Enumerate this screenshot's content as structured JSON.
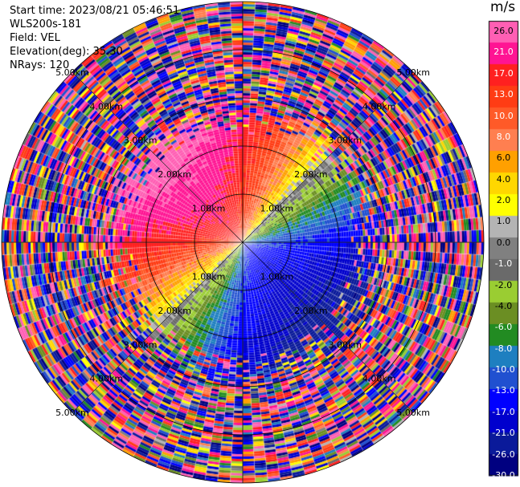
{
  "header": {
    "start_time": "Start time: 2023/08/21 05:46:51",
    "instrument": "WLS200s-181",
    "field": "Field: VEL",
    "elevation": "Elevation(deg): 35.30",
    "nrays": "NRays: 120"
  },
  "colorbar": {
    "unit": "m/s",
    "ticks": [
      "26.0",
      "21.0",
      "17.0",
      "13.0",
      "10.0",
      "8.0",
      "6.0",
      "4.0",
      "2.0",
      "1.0",
      "0.0",
      "-1.0",
      "-2.0",
      "-4.0",
      "-6.0",
      "-8.0",
      "-10.0",
      "-13.0",
      "-17.0",
      "-21.0",
      "-26.0",
      "-30.0"
    ],
    "bins": [
      {
        "color": "#ff5fb4",
        "dark_text": true
      },
      {
        "color": "#ff1493",
        "dark_text": false
      },
      {
        "color": "#ff2020",
        "dark_text": false
      },
      {
        "color": "#ff3c14",
        "dark_text": false
      },
      {
        "color": "#ff5a28",
        "dark_text": false
      },
      {
        "color": "#ff7f50",
        "dark_text": false
      },
      {
        "color": "#ffa000",
        "dark_text": true
      },
      {
        "color": "#ffd700",
        "dark_text": true
      },
      {
        "color": "#ffff00",
        "dark_text": true
      },
      {
        "color": "#b4b4b4",
        "dark_text": true
      },
      {
        "color": "#808080",
        "dark_text": true
      },
      {
        "color": "#6a6a6a",
        "dark_text": false
      },
      {
        "color": "#9acd32",
        "dark_text": true
      },
      {
        "color": "#6b8e23",
        "dark_text": true
      },
      {
        "color": "#228b22",
        "dark_text": false
      },
      {
        "color": "#1e7fc0",
        "dark_text": false
      },
      {
        "color": "#2050d0",
        "dark_text": false
      },
      {
        "color": "#0000ff",
        "dark_text": false
      },
      {
        "color": "#0000cd",
        "dark_text": false
      },
      {
        "color": "#0a1a9a",
        "dark_text": false
      },
      {
        "color": "#000080",
        "dark_text": false
      }
    ]
  },
  "chart_data": {
    "type": "heatmap",
    "subtype": "ppi-polar",
    "field": "VEL",
    "units": "m/s",
    "nrays": 120,
    "ring_labels": [
      "1.00km",
      "2.00km",
      "3.00km",
      "4.00km",
      "5.00km"
    ],
    "ring_ranges_km": [
      1,
      2,
      3,
      4,
      5
    ],
    "max_range_km": 5.0,
    "label_azimuths_deg": [
      45,
      135,
      225,
      315
    ],
    "pattern": "coherent velocity field inside about 2.5 km: positive (red/pink/orange) toward the north-west, near-zero (yellow/grey) along a south-west to north-east band, negative (blue/navy) toward the south-east; beyond about 2.5 km noisy multicolored range gates",
    "colorscale_min": -30.0,
    "colorscale_max": 26.0
  }
}
